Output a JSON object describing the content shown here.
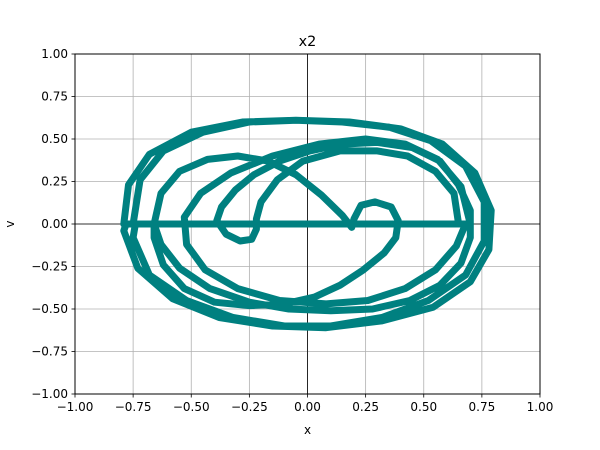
{
  "chart_data": {
    "type": "line",
    "title": "x2",
    "xlabel": "x",
    "ylabel": "v",
    "xlim": [
      -1.0,
      1.0
    ],
    "ylim": [
      -1.0,
      1.0
    ],
    "xticks": [
      "−1.00",
      "−0.75",
      "−0.50",
      "−0.25",
      "0.00",
      "0.25",
      "0.50",
      "0.75",
      "1.00"
    ],
    "yticks": [
      "−1.00",
      "−0.75",
      "−0.50",
      "−0.25",
      "0.00",
      "0.25",
      "0.50",
      "0.75",
      "1.00"
    ],
    "grid": true,
    "zero_axes": true,
    "series": [
      {
        "color": "#008080",
        "points": [
          [
            -0.75,
            0.0
          ],
          [
            -0.72,
            0.26
          ],
          [
            -0.62,
            0.43
          ],
          [
            -0.45,
            0.54
          ],
          [
            -0.25,
            0.6
          ],
          [
            -0.05,
            0.61
          ],
          [
            0.15,
            0.6
          ],
          [
            0.35,
            0.57
          ],
          [
            0.53,
            0.49
          ],
          [
            0.68,
            0.34
          ],
          [
            0.76,
            0.13
          ],
          [
            0.76,
            -0.1
          ],
          [
            0.68,
            -0.3
          ],
          [
            0.52,
            -0.45
          ],
          [
            0.32,
            -0.55
          ],
          [
            0.1,
            -0.6
          ],
          [
            -0.1,
            -0.6
          ],
          [
            -0.32,
            -0.55
          ],
          [
            -0.52,
            -0.45
          ],
          [
            -0.68,
            -0.3
          ],
          [
            -0.75,
            -0.08
          ],
          [
            -0.74,
            0.0
          ],
          [
            -0.66,
            0.0
          ],
          [
            -0.63,
            0.18
          ],
          [
            -0.55,
            0.31
          ],
          [
            -0.43,
            0.38
          ],
          [
            -0.3,
            0.4
          ],
          [
            -0.17,
            0.37
          ],
          [
            -0.05,
            0.29
          ],
          [
            0.06,
            0.17
          ],
          [
            0.15,
            0.05
          ],
          [
            0.19,
            -0.02
          ],
          [
            0.2,
            0.03
          ],
          [
            0.23,
            0.11
          ],
          [
            0.29,
            0.13
          ],
          [
            0.36,
            0.1
          ],
          [
            0.39,
            0.02
          ],
          [
            0.38,
            -0.08
          ],
          [
            0.33,
            -0.17
          ],
          [
            0.24,
            -0.27
          ],
          [
            0.14,
            -0.36
          ],
          [
            0.03,
            -0.43
          ],
          [
            -0.1,
            -0.47
          ],
          [
            -0.25,
            -0.48
          ],
          [
            -0.4,
            -0.46
          ],
          [
            -0.53,
            -0.38
          ],
          [
            -0.62,
            -0.24
          ],
          [
            -0.66,
            -0.08
          ],
          [
            -0.66,
            0.0
          ],
          [
            -0.79,
            0.0
          ],
          [
            -0.77,
            0.23
          ],
          [
            -0.68,
            0.41
          ],
          [
            -0.5,
            0.54
          ],
          [
            -0.28,
            0.6
          ],
          [
            -0.05,
            0.61
          ],
          [
            0.18,
            0.6
          ],
          [
            0.4,
            0.56
          ],
          [
            0.58,
            0.47
          ],
          [
            0.72,
            0.3
          ],
          [
            0.79,
            0.08
          ],
          [
            0.78,
            -0.15
          ],
          [
            0.7,
            -0.34
          ],
          [
            0.54,
            -0.49
          ],
          [
            0.32,
            -0.57
          ],
          [
            0.08,
            -0.61
          ],
          [
            -0.15,
            -0.6
          ],
          [
            -0.38,
            -0.55
          ],
          [
            -0.58,
            -0.44
          ],
          [
            -0.73,
            -0.26
          ],
          [
            -0.79,
            -0.04
          ],
          [
            -0.78,
            0.0
          ],
          [
            0.65,
            0.0
          ],
          [
            0.63,
            0.18
          ],
          [
            0.55,
            0.31
          ],
          [
            0.43,
            0.4
          ],
          [
            0.3,
            0.43
          ],
          [
            0.14,
            0.43
          ],
          [
            -0.02,
            0.37
          ],
          [
            -0.13,
            0.26
          ],
          [
            -0.2,
            0.13
          ],
          [
            -0.22,
            0.03
          ],
          [
            -0.22,
            -0.03
          ],
          [
            -0.24,
            -0.09
          ],
          [
            -0.29,
            -0.1
          ],
          [
            -0.35,
            -0.06
          ],
          [
            -0.39,
            0.02
          ],
          [
            -0.37,
            0.1
          ],
          [
            -0.31,
            0.2
          ],
          [
            -0.23,
            0.29
          ],
          [
            -0.12,
            0.37
          ],
          [
            0.01,
            0.43
          ],
          [
            0.15,
            0.47
          ],
          [
            0.3,
            0.48
          ],
          [
            0.45,
            0.45
          ],
          [
            0.57,
            0.37
          ],
          [
            0.65,
            0.23
          ],
          [
            0.7,
            0.08
          ],
          [
            0.7,
            -0.08
          ],
          [
            0.66,
            -0.23
          ],
          [
            0.57,
            -0.36
          ],
          [
            0.44,
            -0.45
          ],
          [
            0.28,
            -0.5
          ],
          [
            0.1,
            -0.51
          ],
          [
            -0.08,
            -0.5
          ],
          [
            -0.25,
            -0.46
          ],
          [
            -0.42,
            -0.38
          ],
          [
            -0.55,
            -0.26
          ],
          [
            -0.63,
            -0.12
          ],
          [
            -0.66,
            0.0
          ],
          [
            0.7,
            0.0
          ],
          [
            0.66,
            0.22
          ],
          [
            0.56,
            0.38
          ],
          [
            0.42,
            0.47
          ],
          [
            0.25,
            0.5
          ],
          [
            0.05,
            0.47
          ],
          [
            -0.15,
            0.4
          ],
          [
            -0.33,
            0.3
          ],
          [
            -0.46,
            0.18
          ],
          [
            -0.53,
            0.04
          ],
          [
            -0.52,
            -0.12
          ],
          [
            -0.44,
            -0.27
          ],
          [
            -0.3,
            -0.38
          ],
          [
            -0.12,
            -0.45
          ],
          [
            0.08,
            -0.47
          ],
          [
            0.26,
            -0.45
          ],
          [
            0.42,
            -0.38
          ],
          [
            0.55,
            -0.27
          ],
          [
            0.64,
            -0.13
          ],
          [
            0.68,
            0.0
          ]
        ]
      }
    ]
  }
}
